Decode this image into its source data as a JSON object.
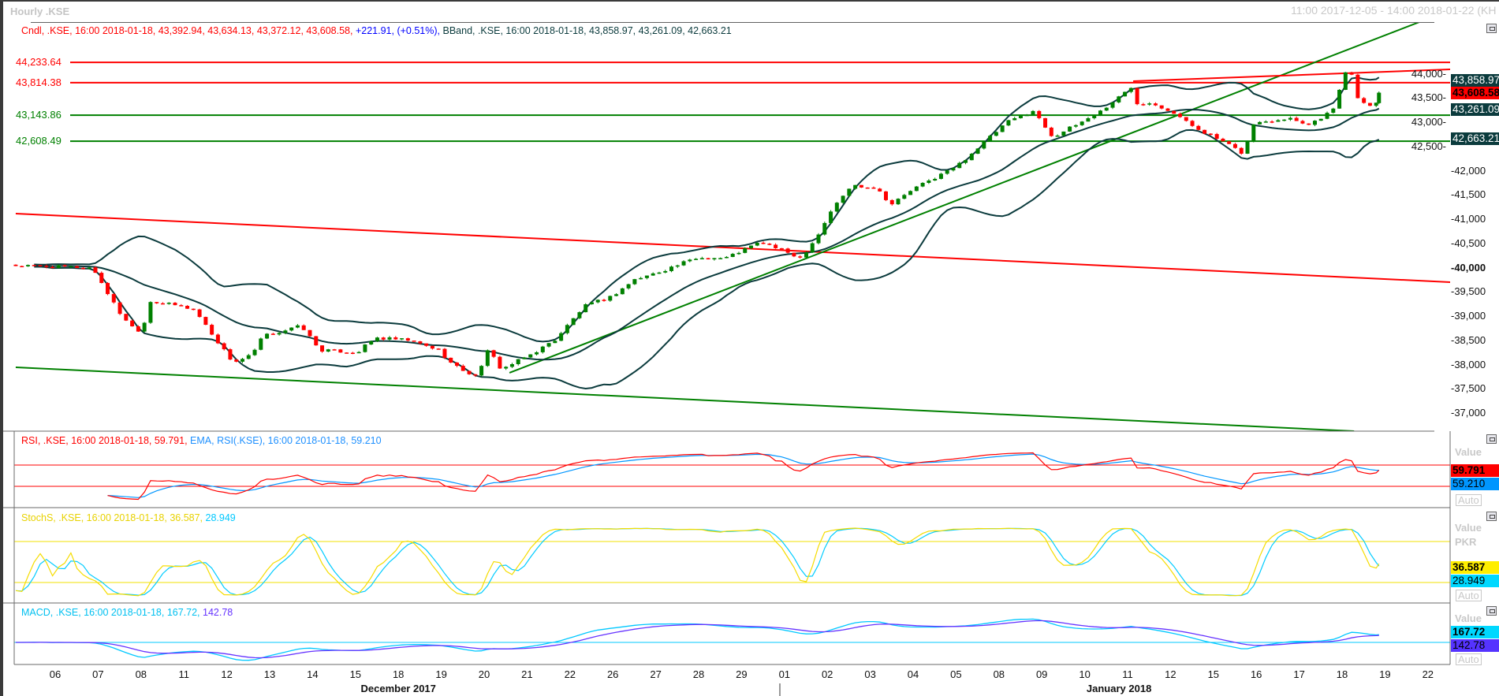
{
  "window": {
    "title": "Hourly .KSE",
    "range": "11:00 2017-12-05 - 14:00 2018-01-22 (KH"
  },
  "legend": {
    "cndl": "Cndl, .KSE, 16:00 2018-01-18, 43,392.94, 43,634.13, 43,372.12, 43,608.58,",
    "change": "+221.91, (+0.51%),",
    "bband": "BBand, .KSE, 16:00 2018-01-18, 43,858.97, 43,261.09, 42,663.21"
  },
  "levels": [
    {
      "label": "44,233.64",
      "value": 44233.64,
      "color": "#ff0000"
    },
    {
      "label": "43,814.38",
      "value": 43814.38,
      "color": "#ff0000"
    },
    {
      "label": "43,143.86",
      "value": 43143.86,
      "color": "#008000"
    },
    {
      "label": "42,608.49",
      "value": 42608.49,
      "color": "#008000"
    }
  ],
  "price_axis": {
    "ticks": [
      {
        "label": "44,000",
        "value": 44000
      },
      {
        "label": "43,500",
        "value": 43500
      },
      {
        "label": "43,000",
        "value": 43000
      },
      {
        "label": "42,500",
        "value": 42500
      },
      {
        "label": "42,000",
        "value": 42000
      },
      {
        "label": "41,500",
        "value": 41500
      },
      {
        "label": "41,000",
        "value": 41000
      },
      {
        "label": "40,500",
        "value": 40500
      },
      {
        "label": "40,000",
        "value": 40000,
        "bold": true
      },
      {
        "label": "39,500",
        "value": 39500
      },
      {
        "label": "39,000",
        "value": 39000
      },
      {
        "label": "38,500",
        "value": 38500
      },
      {
        "label": "38,000",
        "value": 38000
      },
      {
        "label": "37,500",
        "value": 37500
      },
      {
        "label": "37,000",
        "value": 37000
      }
    ],
    "boxes": [
      {
        "label": "43,858.97",
        "value": 43858.97,
        "bg": "#0b3b3d",
        "fg": "#ffffff",
        "bold": false
      },
      {
        "label": "43,608.58",
        "value": 43608.58,
        "bg": "#ff0000",
        "fg": "#000000",
        "bold": true
      },
      {
        "label": "43,261.09",
        "value": 43261.09,
        "bg": "#0b3b3d",
        "fg": "#ffffff",
        "bold": false
      },
      {
        "label": "42,663.21",
        "value": 42663.21,
        "bg": "#0b3b3d",
        "fg": "#ffffff",
        "bold": false
      }
    ]
  },
  "rsi": {
    "legend_rsi": "RSI, .KSE, 16:00 2018-01-18, 59.791,",
    "legend_ema": "EMA, RSI(.KSE), 16:00 2018-01-18, 59.210",
    "value_label": "Value",
    "value1": "59.791",
    "value2": "59.210",
    "auto": "Auto",
    "upper": 70,
    "lower": 30,
    "colors": {
      "rsi": "#ff0000",
      "ema": "#0096ff"
    }
  },
  "stoch": {
    "legend_k": "StochS, .KSE, 16:00 2018-01-18, 36.587,",
    "legend_d": "28.949",
    "value_label": "Value",
    "unit": "PKR",
    "value1": "36.587",
    "value2": "28.949",
    "auto": "Auto",
    "upper": 80,
    "lower": 20,
    "colors": {
      "k": "#f5dc00",
      "d": "#00ccff"
    }
  },
  "macd": {
    "legend_macd": "MACD, .KSE, 16:00 2018-01-18, 167.72,",
    "legend_signal": "142.78",
    "value_label": "Value",
    "value1": "167.72",
    "value2": "142.78",
    "auto": "Auto",
    "colors": {
      "macd": "#00c8ff",
      "signal": "#6633ff"
    }
  },
  "x_axis": {
    "days": [
      "06",
      "07",
      "08",
      "11",
      "12",
      "13",
      "14",
      "15",
      "18",
      "19",
      "20",
      "21",
      "22",
      "26",
      "27",
      "28",
      "29",
      "01",
      "02",
      "03",
      "04",
      "05",
      "08",
      "09",
      "10",
      "11",
      "12",
      "15",
      "16",
      "17",
      "18",
      "19",
      "22"
    ],
    "months": [
      {
        "label": "December 2017",
        "center_day_index": 8
      },
      {
        "label": "January 2018",
        "center_day_index": 24.8
      }
    ]
  },
  "chart_data": {
    "type": "candlestick",
    "title": "Hourly .KSE",
    "x_unit": "trading days since 2017-12-06 open",
    "ylim": [
      36800,
      44800
    ],
    "bars_per_day": 7,
    "close_anchors": [
      [
        -0.92,
        40040
      ],
      [
        0.83,
        40000
      ],
      [
        0.94,
        39900
      ],
      [
        1.47,
        39100
      ],
      [
        1.88,
        38700
      ],
      [
        2.04,
        38740
      ],
      [
        2.21,
        39310
      ],
      [
        2.94,
        39200
      ],
      [
        3.25,
        39130
      ],
      [
        3.68,
        38600
      ],
      [
        4.15,
        38040
      ],
      [
        4.6,
        38200
      ],
      [
        4.83,
        38580
      ],
      [
        5.74,
        38800
      ],
      [
        6.16,
        38300
      ],
      [
        7.04,
        38250
      ],
      [
        7.46,
        38550
      ],
      [
        8.22,
        38500
      ],
      [
        8.95,
        38300
      ],
      [
        9.26,
        38000
      ],
      [
        9.8,
        37750
      ],
      [
        10.1,
        38300
      ],
      [
        10.4,
        37900
      ],
      [
        11.07,
        38200
      ],
      [
        11.64,
        38500
      ],
      [
        12.33,
        39200
      ],
      [
        12.96,
        39400
      ],
      [
        13.5,
        39750
      ],
      [
        13.97,
        39880
      ],
      [
        14.96,
        40200
      ],
      [
        15.63,
        40200
      ],
      [
        16.45,
        40530
      ],
      [
        17.39,
        40200
      ],
      [
        17.8,
        40700
      ],
      [
        18.09,
        41180
      ],
      [
        18.57,
        41700
      ],
      [
        19.14,
        41650
      ],
      [
        19.49,
        41300
      ],
      [
        19.96,
        41600
      ],
      [
        21.03,
        42100
      ],
      [
        21.6,
        42540
      ],
      [
        22.19,
        43000
      ],
      [
        22.79,
        43240
      ],
      [
        23.25,
        42700
      ],
      [
        23.71,
        42900
      ],
      [
        24.41,
        43250
      ],
      [
        25.13,
        43750
      ],
      [
        25.18,
        43400
      ],
      [
        25.59,
        43400
      ],
      [
        26.07,
        43200
      ],
      [
        26.42,
        42970
      ],
      [
        27.0,
        42700
      ],
      [
        27.7,
        42350
      ],
      [
        27.94,
        42970
      ],
      [
        28.75,
        43100
      ],
      [
        29.23,
        42950
      ],
      [
        29.87,
        43300
      ],
      [
        29.99,
        44000
      ],
      [
        30.22,
        44000
      ],
      [
        30.4,
        43400
      ],
      [
        30.57,
        43400
      ],
      [
        30.75,
        43320
      ],
      [
        30.86,
        43608.58
      ]
    ],
    "last_candle": {
      "open": 43392.94,
      "high": 43634.13,
      "low": 43372.12,
      "close": 43608.58
    },
    "bollinger": {
      "period": 20,
      "k": 2,
      "upper": 43858.97,
      "middle": 43261.09,
      "lower": 42663.21
    },
    "trendlines": [
      {
        "color": "#ff0000",
        "from": [
          -0.92,
          41114
        ],
        "to": [
          32.52,
          39700
        ]
      },
      {
        "color": "#008000",
        "from": [
          -0.92,
          37943
        ],
        "to": [
          30.28,
          36626
        ]
      },
      {
        "color": "#008000",
        "from": [
          10.59,
          37830
        ],
        "to": [
          31.8,
          45065
        ]
      },
      {
        "color": "#ff0000",
        "from": [
          25.13,
          43845
        ],
        "to": [
          32.52,
          44090
        ]
      }
    ],
    "colors": {
      "up": "#008000",
      "down": "#ff0000",
      "bands": "#0b3b3d"
    }
  }
}
